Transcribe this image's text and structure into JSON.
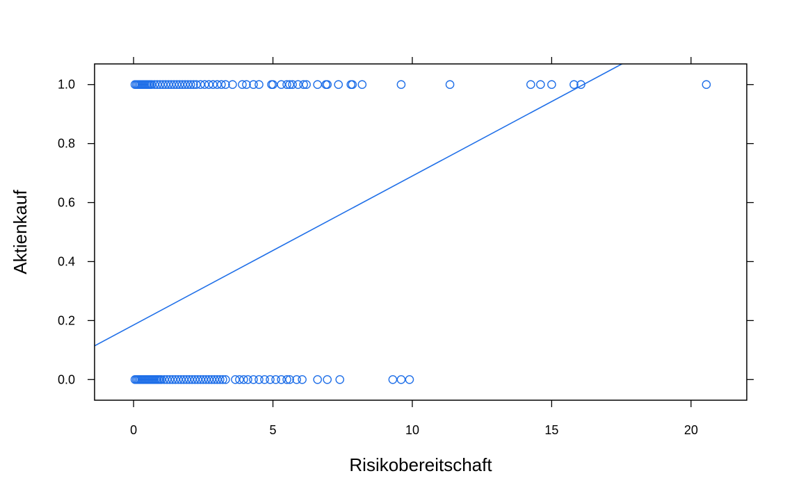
{
  "chart_data": {
    "type": "scatter",
    "title": "",
    "xlabel": "Risikobereitschaft",
    "ylabel": "Aktienkauf",
    "xlim": [
      -1.4,
      22
    ],
    "ylim": [
      -0.07,
      1.07
    ],
    "x_ticks": [
      0,
      5,
      10,
      15,
      20
    ],
    "y_ticks": [
      0.0,
      0.2,
      0.4,
      0.6,
      0.8,
      1.0
    ],
    "x_tick_labels": [
      "0",
      "5",
      "10",
      "15",
      "20"
    ],
    "y_tick_labels": [
      "0.0",
      "0.2",
      "0.4",
      "0.6",
      "0.8",
      "1.0"
    ],
    "grid": false,
    "colors": {
      "points": "#1f6fe8",
      "line": "#1f6fe8",
      "frame": "#000000"
    },
    "series": [
      {
        "kind": "points",
        "y": 1,
        "x": [
          0.05,
          0.1,
          0.15,
          0.2,
          0.25,
          0.3,
          0.35,
          0.4,
          0.45,
          0.5,
          0.55,
          0.6,
          0.65,
          0.75,
          0.85,
          0.95,
          1.05,
          1.15,
          1.25,
          1.35,
          1.45,
          1.55,
          1.65,
          1.75,
          1.85,
          1.95,
          2.05,
          2.15,
          2.25,
          2.4,
          2.55,
          2.7,
          2.85,
          3.0,
          3.15,
          3.3,
          3.55,
          3.9,
          4.05,
          4.3,
          4.5,
          4.95,
          5.0,
          5.3,
          5.5,
          5.6,
          5.7,
          5.9,
          6.1,
          6.2,
          6.6,
          6.9,
          6.95,
          7.35,
          7.8,
          7.85,
          8.2,
          9.6,
          11.35,
          14.25,
          14.6,
          15.0,
          15.8,
          16.05,
          20.55
        ]
      },
      {
        "kind": "points",
        "y": 0,
        "x": [
          0.05,
          0.1,
          0.15,
          0.2,
          0.25,
          0.3,
          0.35,
          0.4,
          0.45,
          0.5,
          0.55,
          0.6,
          0.65,
          0.7,
          0.75,
          0.8,
          0.85,
          0.9,
          0.95,
          1.0,
          1.1,
          1.2,
          1.3,
          1.4,
          1.5,
          1.6,
          1.7,
          1.8,
          1.9,
          2.0,
          2.1,
          2.2,
          2.3,
          2.4,
          2.5,
          2.6,
          2.7,
          2.8,
          2.9,
          3.0,
          3.1,
          3.2,
          3.3,
          3.65,
          3.8,
          3.95,
          4.1,
          4.3,
          4.5,
          4.7,
          4.9,
          5.1,
          5.3,
          5.5,
          5.6,
          5.85,
          6.05,
          6.6,
          6.95,
          7.4,
          9.3,
          9.6,
          9.9
        ]
      },
      {
        "kind": "line",
        "intercept": 0.185,
        "slope": 0.0505
      }
    ]
  }
}
